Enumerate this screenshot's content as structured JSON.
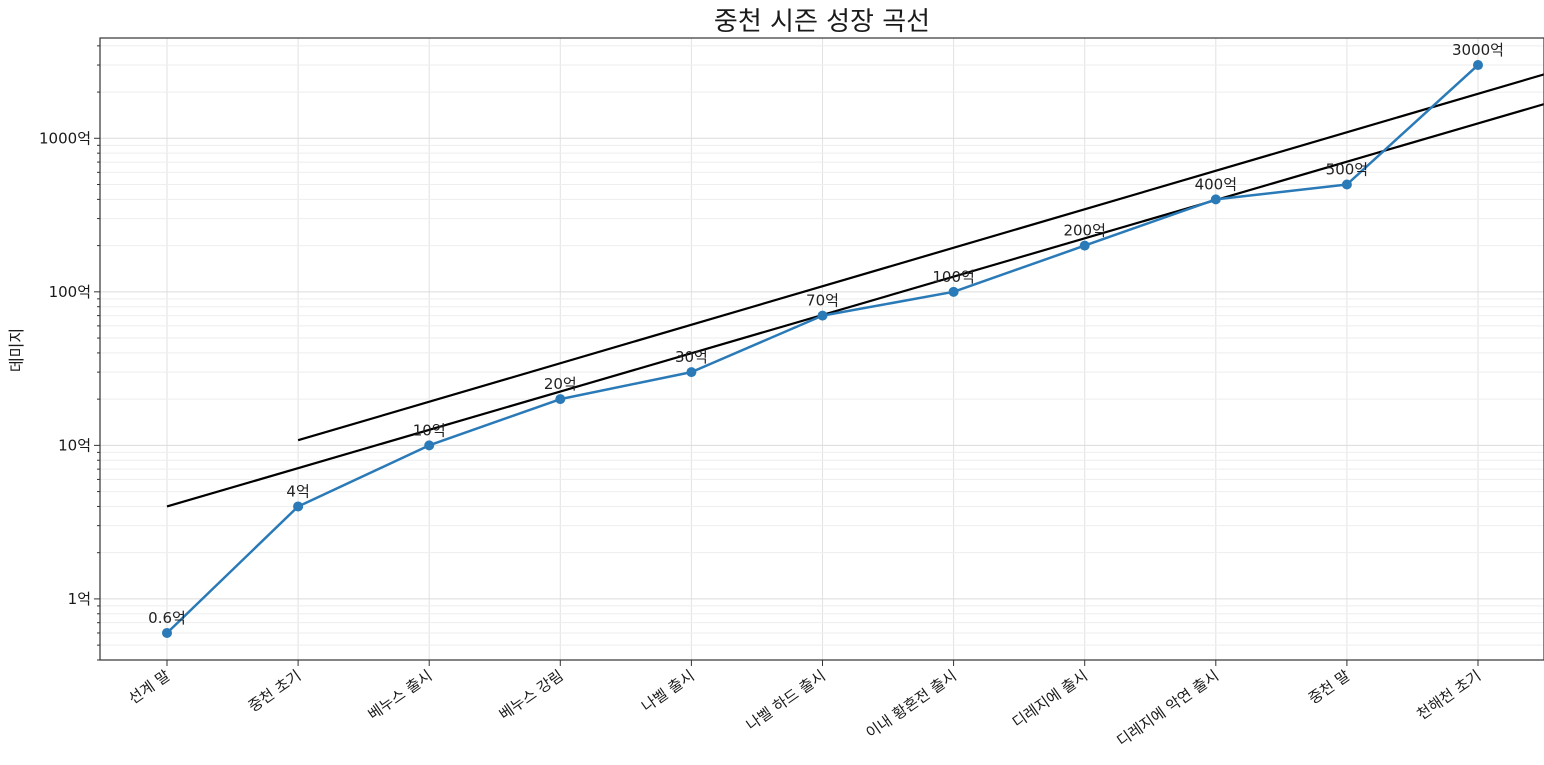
{
  "chart_data": {
    "type": "line",
    "title": "중천 시즌 성장 곡선",
    "xlabel": "",
    "ylabel": "데미지",
    "yscale": "log",
    "ylim": [
      0.4,
      4500
    ],
    "grid": true,
    "categories": [
      "선계 말",
      "중천 초기",
      "베누스 출시",
      "베누스 강림",
      "나벨 출시",
      "나벨 하드 출시",
      "이내 황혼전 출시",
      "디레지에 출시",
      "디레지에 악연 출시",
      "중천 말",
      "천해천 초기"
    ],
    "yticks": [
      {
        "value": 1,
        "label": "1억"
      },
      {
        "value": 10,
        "label": "10억"
      },
      {
        "value": 100,
        "label": "100억"
      },
      {
        "value": 1000,
        "label": "1000억"
      }
    ],
    "series": [
      {
        "values": [
          0.6,
          4,
          10,
          20,
          30,
          70,
          100,
          200,
          400,
          500,
          3000
        ],
        "labels": [
          "0.6억",
          "4억",
          "10억",
          "20억",
          "30억",
          "70억",
          "100억",
          "200억",
          "400억",
          "500억",
          "3000억"
        ],
        "color": "#2a7ab8"
      }
    ],
    "trend_lines": [
      {
        "color": "#000000",
        "x": [
          1,
          11
        ],
        "y": [
          4,
          1250
        ]
      },
      {
        "color": "#000000",
        "x": [
          2,
          11
        ],
        "y": [
          10.8,
          1950
        ]
      }
    ]
  }
}
